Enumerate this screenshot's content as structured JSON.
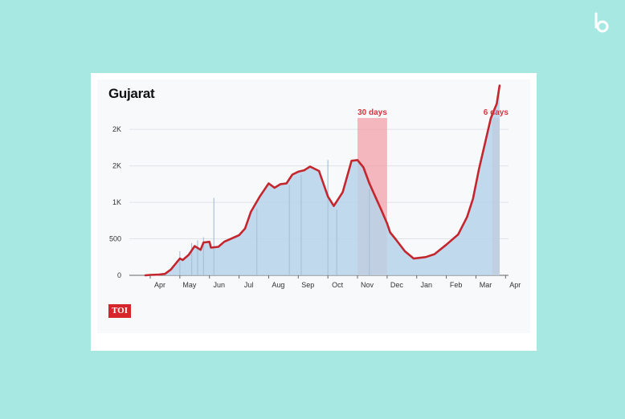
{
  "brand": {
    "icon": "b-logo-icon"
  },
  "chart": {
    "title": "Gujarat",
    "logo_text": "TOI"
  },
  "colors": {
    "background": "#a8e8e3",
    "area_fill": "#b7d3e9",
    "line": "#c4262e",
    "highlight": "#f3a0a8",
    "annotation": "#d9333d"
  },
  "chart_data": {
    "type": "area",
    "title": "Gujarat",
    "xlabel": "",
    "ylabel": "",
    "grid": true,
    "x_ticks": [
      "Apr",
      "May",
      "Jun",
      "Jul",
      "Aug",
      "Sep",
      "Oct",
      "Nov",
      "Dec",
      "Jan",
      "Feb",
      "Mar",
      "Apr"
    ],
    "y_ticks": [
      {
        "value": 0,
        "label": "0"
      },
      {
        "value": 500,
        "label": "500"
      },
      {
        "value": 1000,
        "label": "1K"
      },
      {
        "value": 1500,
        "label": "2K"
      },
      {
        "value": 2000,
        "label": "2K"
      }
    ],
    "ylim": [
      0,
      2200
    ],
    "xlim": [
      0,
      12.1
    ],
    "series": [
      {
        "type": "line",
        "x": [
          -0.5,
          0,
          0.3,
          0.5,
          0.7,
          1.0,
          1.1,
          1.3,
          1.5,
          1.7,
          1.8,
          2.0,
          2.05,
          2.3,
          2.5,
          3.0,
          3.2,
          3.4,
          3.7,
          4.0,
          4.2,
          4.4,
          4.6,
          4.8,
          5.0,
          5.2,
          5.4,
          5.7,
          6.0,
          6.2,
          6.5,
          6.8,
          7.0,
          7.2,
          7.4,
          7.6,
          7.8,
          8.0,
          8.1,
          8.3,
          8.6,
          8.9,
          9.3,
          9.6,
          10.0,
          10.4,
          10.7,
          10.9,
          11.1,
          11.3,
          11.5,
          11.7,
          11.8
        ],
        "y": [
          0,
          5,
          10,
          20,
          80,
          230,
          210,
          280,
          400,
          350,
          450,
          460,
          380,
          390,
          460,
          550,
          640,
          870,
          1080,
          1260,
          1200,
          1250,
          1260,
          1380,
          1420,
          1440,
          1490,
          1430,
          1080,
          950,
          1140,
          1570,
          1580,
          1480,
          1260,
          1080,
          900,
          710,
          590,
          490,
          330,
          230,
          250,
          290,
          420,
          560,
          800,
          1050,
          1450,
          1800,
          2150,
          2350,
          2600
        ]
      }
    ],
    "bars": {
      "x": [
        1.0,
        1.4,
        1.6,
        1.8,
        2.15,
        3.6,
        4.7,
        5.1,
        6.0,
        6.3,
        7.4
      ],
      "y": [
        330,
        440,
        480,
        520,
        1060,
        920,
        1240,
        1380,
        1580,
        900,
        1180
      ]
    },
    "annotations": [
      {
        "label": "30 days",
        "x_start": 7.0,
        "x_end": 8.0,
        "type": "highlight"
      },
      {
        "label": "6 days",
        "x_start": 11.55,
        "x_end": 11.8,
        "type": "highlight"
      }
    ]
  }
}
